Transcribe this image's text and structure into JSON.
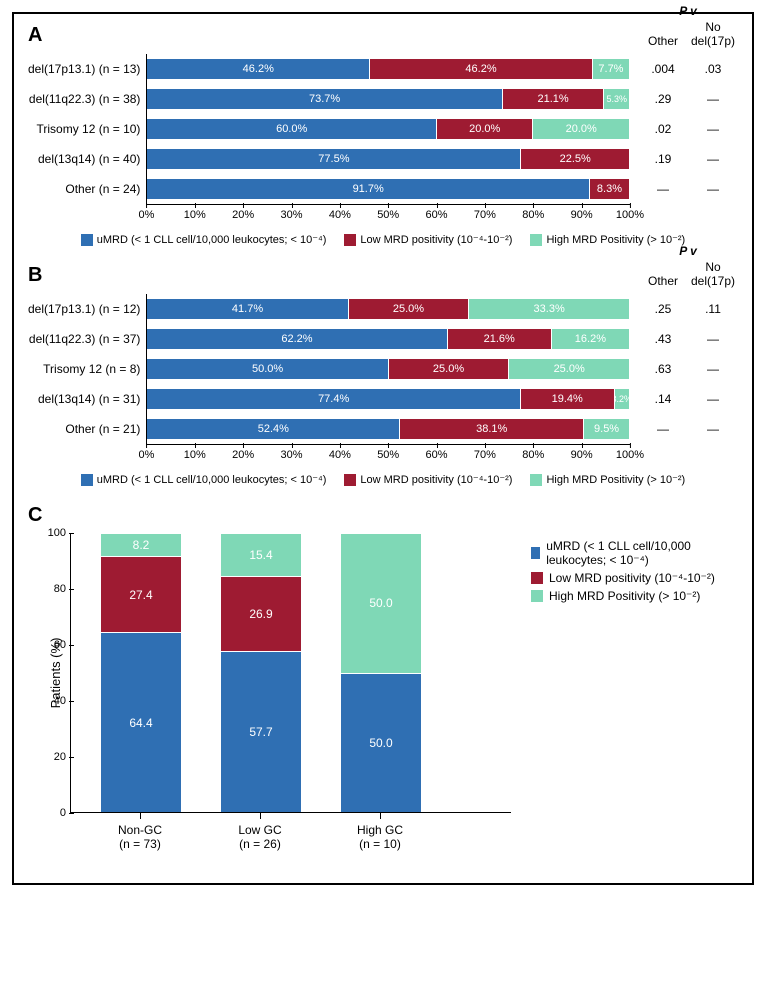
{
  "colors": {
    "umrd": "#2f6fb3",
    "low": "#9e1b32",
    "high": "#7fd8b6",
    "border": "#000000",
    "bg": "#ffffff"
  },
  "legend": {
    "umrd": "uMRD (< 1 CLL cell/10,000 leukocytes; < 10⁻⁴)",
    "low": "Low MRD positivity (10⁻⁴-10⁻²)",
    "high": "High MRD Positivity (> 10⁻²)"
  },
  "xticks": [
    "0%",
    "10%",
    "20%",
    "30%",
    "40%",
    "50%",
    "60%",
    "70%",
    "80%",
    "90%",
    "100%"
  ],
  "pv_header": {
    "title": "P v",
    "col1": "Other",
    "col2": "No del(17p)"
  },
  "panelA": {
    "label": "A",
    "rows": [
      {
        "name": "del(17p13.1) (n = 13)",
        "umrd": 46.2,
        "low": 46.2,
        "high": 7.7,
        "p_other": ".004",
        "p_no17p": ".03"
      },
      {
        "name": "del(11q22.3) (n = 38)",
        "umrd": 73.7,
        "low": 21.1,
        "high": 5.3,
        "p_other": ".29",
        "p_no17p": "—"
      },
      {
        "name": "Trisomy 12 (n = 10)",
        "umrd": 60.0,
        "low": 20.0,
        "high": 20.0,
        "p_other": ".02",
        "p_no17p": "—"
      },
      {
        "name": "del(13q14) (n = 40)",
        "umrd": 77.5,
        "low": 22.5,
        "high": 0,
        "p_other": ".19",
        "p_no17p": "—"
      },
      {
        "name": "Other (n = 24)",
        "umrd": 91.7,
        "low": 8.3,
        "high": 0,
        "p_other": "—",
        "p_no17p": "—"
      }
    ]
  },
  "panelB": {
    "label": "B",
    "rows": [
      {
        "name": "del(17p13.1) (n = 12)",
        "umrd": 41.7,
        "low": 25.0,
        "high": 33.3,
        "p_other": ".25",
        "p_no17p": ".11"
      },
      {
        "name": "del(11q22.3) (n = 37)",
        "umrd": 62.2,
        "low": 21.6,
        "high": 16.2,
        "p_other": ".43",
        "p_no17p": "—"
      },
      {
        "name": "Trisomy 12 (n = 8)",
        "umrd": 50.0,
        "low": 25.0,
        "high": 25.0,
        "p_other": ".63",
        "p_no17p": "—"
      },
      {
        "name": "del(13q14) (n = 31)",
        "umrd": 77.4,
        "low": 19.4,
        "high": 3.2,
        "p_other": ".14",
        "p_no17p": "—"
      },
      {
        "name": "Other (n = 21)",
        "umrd": 52.4,
        "low": 38.1,
        "high": 9.5,
        "p_other": "—",
        "p_no17p": "—"
      }
    ]
  },
  "panelC": {
    "label": "C",
    "ylabel": "Patients (%)",
    "yticks": [
      0,
      20,
      40,
      60,
      80,
      100
    ],
    "bars": [
      {
        "name": "Non-GC",
        "n": "(n = 73)",
        "umrd": 64.4,
        "low": 27.4,
        "high": 8.2
      },
      {
        "name": "Low GC",
        "n": "(n = 26)",
        "umrd": 57.7,
        "low": 26.9,
        "high": 15.4
      },
      {
        "name": "High GC",
        "n": "(n = 10)",
        "umrd": 50.0,
        "low": 0,
        "high": 50.0
      }
    ]
  }
}
